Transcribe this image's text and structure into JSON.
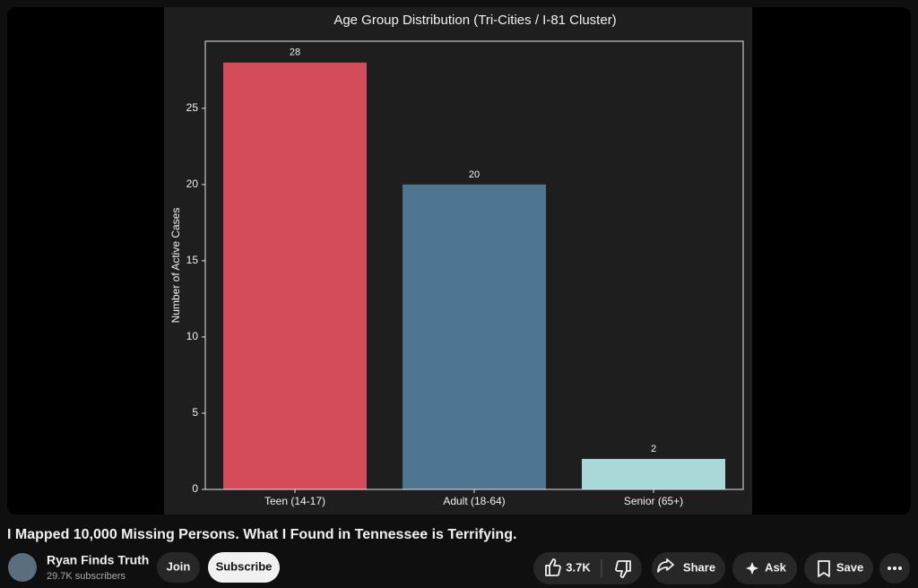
{
  "chart_data": {
    "type": "bar",
    "title": "Age Group Distribution (Tri-Cities / I-81 Cluster)",
    "y_label": "Number of Active Cases",
    "categories": [
      "Teen (14-17)",
      "Adult (18-64)",
      "Senior (65+)"
    ],
    "values": [
      28,
      20,
      2
    ],
    "colors": [
      "#d44c5a",
      "#4f7690",
      "#a8d8d8"
    ],
    "ylim": [
      0,
      29.4
    ],
    "yticks": [
      0,
      5,
      10,
      15,
      20,
      25
    ],
    "grid": false
  },
  "video": {
    "title": "I Mapped 10,000 Missing Persons. What I Found in Tennessee is Terrifying.",
    "channel": "Ryan Finds Truth",
    "subscribers": "29.7K subscribers",
    "join": "Join",
    "subscribe": "Subscribe",
    "likes": "3.7K",
    "share": "Share",
    "ask": "Ask",
    "save": "Save"
  }
}
